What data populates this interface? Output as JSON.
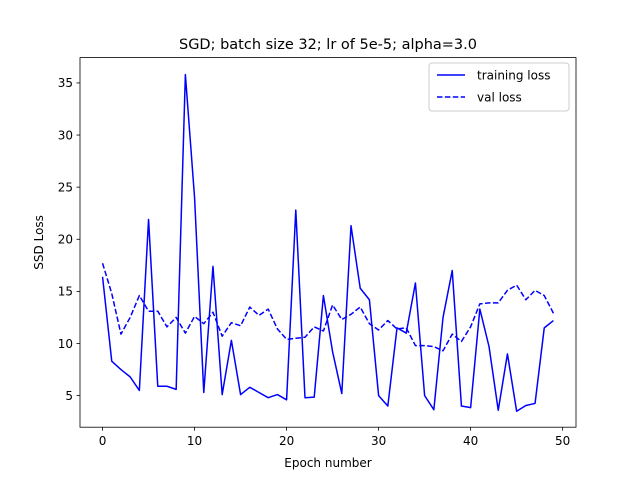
{
  "chart_data": {
    "type": "line",
    "title": "SGD; batch size 32; lr of 5e-5; alpha=3.0",
    "xlabel": "Epoch number",
    "ylabel": "SSD Loss",
    "xlim": [
      -2.45,
      51.45
    ],
    "ylim": [
      1.97,
      37.43
    ],
    "xticks": [
      0,
      10,
      20,
      30,
      40,
      50
    ],
    "yticks": [
      5,
      10,
      15,
      20,
      25,
      30,
      35
    ],
    "grid": false,
    "legend_position": "top-right",
    "x": [
      0,
      1,
      2,
      3,
      4,
      5,
      6,
      7,
      8,
      9,
      10,
      11,
      12,
      13,
      14,
      15,
      16,
      17,
      18,
      19,
      20,
      21,
      22,
      23,
      24,
      25,
      26,
      27,
      28,
      29,
      30,
      31,
      32,
      33,
      34,
      35,
      36,
      37,
      38,
      39,
      40,
      41,
      42,
      43,
      44,
      45,
      46,
      47,
      48,
      49
    ],
    "series": [
      {
        "name": "training loss",
        "color": "#0000ff",
        "style": "solid",
        "values": [
          16.4,
          8.3,
          7.5,
          6.8,
          5.5,
          21.9,
          5.9,
          5.9,
          5.6,
          35.8,
          24.0,
          5.3,
          17.4,
          5.1,
          10.3,
          5.1,
          5.8,
          5.3,
          4.8,
          5.1,
          4.6,
          22.8,
          4.8,
          4.85,
          14.6,
          9.2,
          5.2,
          21.3,
          15.3,
          14.2,
          5.0,
          4.0,
          11.5,
          11.0,
          15.8,
          5.0,
          3.65,
          12.5,
          17.0,
          4.0,
          3.85,
          13.3,
          9.7,
          3.6,
          9.0,
          3.5,
          4.05,
          4.25,
          11.5,
          12.2
        ]
      },
      {
        "name": "val loss",
        "color": "#0000ff",
        "style": "dashed",
        "values": [
          17.7,
          14.8,
          10.9,
          12.5,
          14.6,
          13.1,
          13.1,
          11.6,
          12.5,
          11.0,
          12.6,
          11.9,
          13.0,
          10.7,
          12.0,
          11.7,
          13.5,
          12.7,
          13.3,
          11.4,
          10.4,
          10.5,
          10.6,
          11.6,
          11.2,
          13.7,
          12.3,
          12.8,
          13.5,
          11.9,
          11.3,
          12.2,
          11.4,
          11.5,
          9.8,
          9.8,
          9.7,
          9.3,
          10.9,
          10.2,
          11.6,
          13.8,
          13.9,
          13.9,
          15.1,
          15.6,
          14.2,
          15.1,
          14.6,
          12.9
        ]
      }
    ]
  }
}
